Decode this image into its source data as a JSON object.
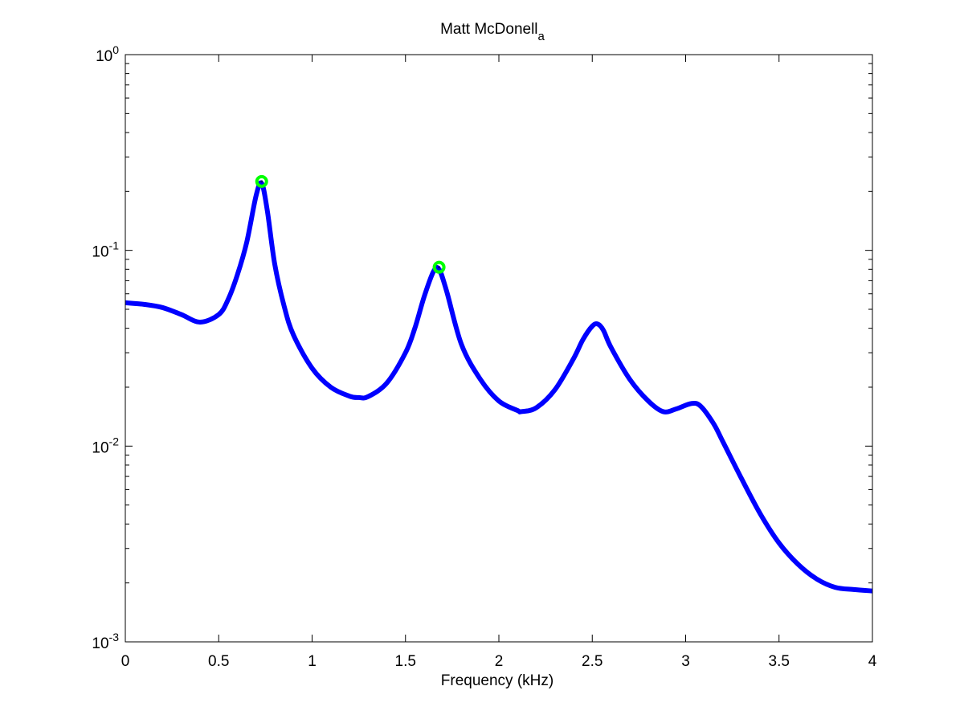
{
  "chart_data": {
    "type": "line",
    "title": "Matt McDonell",
    "title_subscript": "a",
    "xlabel": "Frequency (kHz)",
    "ylabel": "",
    "xlim": [
      0,
      4
    ],
    "ylim": [
      0.001,
      1
    ],
    "yscale": "log",
    "grid": false,
    "legend": "none",
    "x_ticks": [
      {
        "value": 0,
        "label": "0"
      },
      {
        "value": 0.5,
        "label": "0.5"
      },
      {
        "value": 1,
        "label": "1"
      },
      {
        "value": 1.5,
        "label": "1.5"
      },
      {
        "value": 2,
        "label": "2"
      },
      {
        "value": 2.5,
        "label": "2.5"
      },
      {
        "value": 3,
        "label": "3"
      },
      {
        "value": 3.5,
        "label": "3.5"
      },
      {
        "value": 4,
        "label": "4"
      }
    ],
    "y_ticks": [
      {
        "value": 1,
        "base": "10",
        "exponent": "0"
      },
      {
        "value": 0.1,
        "base": "10",
        "exponent": "-1"
      },
      {
        "value": 0.01,
        "base": "10",
        "exponent": "-2"
      },
      {
        "value": 0.001,
        "base": "10",
        "exponent": "-3"
      }
    ],
    "series": [
      {
        "color": "#0000ff",
        "x": [
          0,
          0.1,
          0.2,
          0.3,
          0.4,
          0.5,
          0.55,
          0.6,
          0.65,
          0.7,
          0.73,
          0.76,
          0.8,
          0.85,
          0.9,
          1.0,
          1.1,
          1.2,
          1.25,
          1.3,
          1.4,
          1.5,
          1.55,
          1.6,
          1.65,
          1.68,
          1.72,
          1.8,
          1.9,
          2.0,
          2.1,
          2.12,
          2.2,
          2.3,
          2.4,
          2.45,
          2.5,
          2.53,
          2.56,
          2.6,
          2.7,
          2.8,
          2.88,
          2.95,
          3.03,
          3.08,
          3.15,
          3.2,
          3.3,
          3.4,
          3.5,
          3.6,
          3.7,
          3.8,
          3.9,
          4.0
        ],
        "y": [
          0.054,
          0.053,
          0.051,
          0.047,
          0.043,
          0.047,
          0.056,
          0.075,
          0.11,
          0.19,
          0.22,
          0.16,
          0.085,
          0.052,
          0.037,
          0.025,
          0.02,
          0.018,
          0.0177,
          0.0179,
          0.021,
          0.03,
          0.04,
          0.058,
          0.078,
          0.08,
          0.062,
          0.033,
          0.022,
          0.017,
          0.0152,
          0.015,
          0.0157,
          0.0194,
          0.028,
          0.035,
          0.041,
          0.042,
          0.039,
          0.032,
          0.022,
          0.017,
          0.015,
          0.0155,
          0.0165,
          0.016,
          0.013,
          0.0105,
          0.0068,
          0.0045,
          0.0032,
          0.0025,
          0.0021,
          0.0019,
          0.00185,
          0.00182
        ]
      }
    ],
    "markers": [
      {
        "x": 0.73,
        "y": 0.225,
        "color": "#00ff00"
      },
      {
        "x": 1.68,
        "y": 0.082,
        "color": "#00ff00"
      }
    ]
  }
}
